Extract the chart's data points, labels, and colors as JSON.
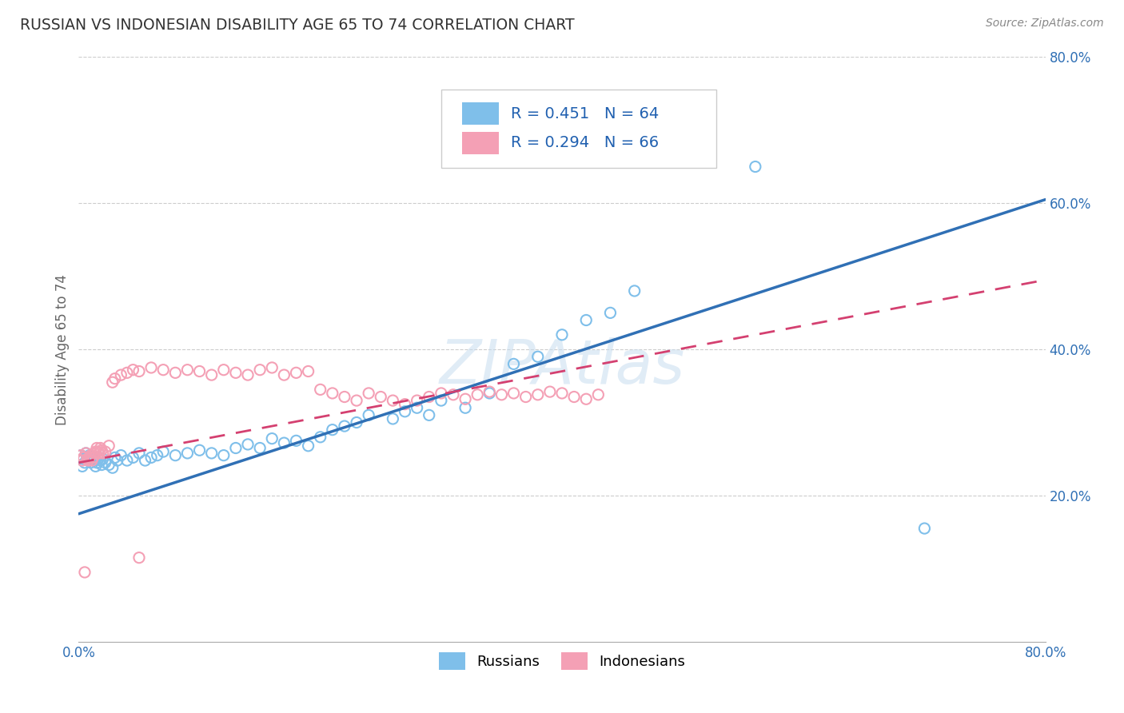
{
  "title": "RUSSIAN VS INDONESIAN DISABILITY AGE 65 TO 74 CORRELATION CHART",
  "source": "Source: ZipAtlas.com",
  "ylabel": "Disability Age 65 to 74",
  "xlim": [
    0.0,
    0.8
  ],
  "ylim": [
    0.0,
    0.8
  ],
  "watermark": "ZIPAtlas",
  "russian_color": "#7fbfea",
  "indonesian_color": "#f4a0b5",
  "russian_line_color": "#3070b5",
  "indonesian_line_color": "#d44070",
  "R_russian": "0.451",
  "N_russian": "64",
  "R_indonesian": "0.294",
  "N_indonesian": "66",
  "russians_x": [
    0.002,
    0.003,
    0.004,
    0.005,
    0.006,
    0.007,
    0.008,
    0.009,
    0.01,
    0.011,
    0.012,
    0.013,
    0.014,
    0.015,
    0.016,
    0.017,
    0.018,
    0.019,
    0.02,
    0.022,
    0.025,
    0.028,
    0.03,
    0.032,
    0.035,
    0.04,
    0.045,
    0.05,
    0.055,
    0.06,
    0.065,
    0.07,
    0.08,
    0.09,
    0.1,
    0.11,
    0.12,
    0.13,
    0.14,
    0.15,
    0.16,
    0.17,
    0.18,
    0.19,
    0.2,
    0.21,
    0.22,
    0.23,
    0.24,
    0.26,
    0.27,
    0.28,
    0.29,
    0.3,
    0.32,
    0.34,
    0.36,
    0.38,
    0.4,
    0.42,
    0.44,
    0.46,
    0.56,
    0.7
  ],
  "russians_y": [
    0.255,
    0.24,
    0.25,
    0.245,
    0.258,
    0.252,
    0.248,
    0.255,
    0.245,
    0.25,
    0.252,
    0.248,
    0.24,
    0.245,
    0.25,
    0.252,
    0.248,
    0.242,
    0.25,
    0.245,
    0.242,
    0.238,
    0.252,
    0.248,
    0.255,
    0.248,
    0.252,
    0.258,
    0.248,
    0.252,
    0.255,
    0.26,
    0.255,
    0.258,
    0.262,
    0.258,
    0.255,
    0.265,
    0.27,
    0.265,
    0.278,
    0.272,
    0.275,
    0.268,
    0.28,
    0.29,
    0.295,
    0.3,
    0.31,
    0.305,
    0.315,
    0.32,
    0.31,
    0.33,
    0.32,
    0.34,
    0.38,
    0.39,
    0.42,
    0.44,
    0.45,
    0.48,
    0.65,
    0.155
  ],
  "indonesians_x": [
    0.002,
    0.003,
    0.004,
    0.005,
    0.006,
    0.007,
    0.008,
    0.009,
    0.01,
    0.011,
    0.012,
    0.013,
    0.014,
    0.015,
    0.016,
    0.017,
    0.018,
    0.019,
    0.02,
    0.022,
    0.025,
    0.028,
    0.03,
    0.035,
    0.04,
    0.045,
    0.05,
    0.06,
    0.07,
    0.08,
    0.09,
    0.1,
    0.11,
    0.12,
    0.13,
    0.14,
    0.15,
    0.16,
    0.17,
    0.18,
    0.19,
    0.2,
    0.21,
    0.22,
    0.23,
    0.24,
    0.25,
    0.26,
    0.27,
    0.28,
    0.29,
    0.3,
    0.31,
    0.32,
    0.33,
    0.34,
    0.35,
    0.36,
    0.37,
    0.38,
    0.39,
    0.4,
    0.41,
    0.42,
    0.43,
    0.05
  ],
  "indonesians_y": [
    0.255,
    0.248,
    0.252,
    0.095,
    0.258,
    0.25,
    0.248,
    0.252,
    0.255,
    0.248,
    0.252,
    0.258,
    0.26,
    0.265,
    0.26,
    0.258,
    0.265,
    0.262,
    0.258,
    0.26,
    0.268,
    0.355,
    0.36,
    0.365,
    0.368,
    0.372,
    0.37,
    0.375,
    0.372,
    0.368,
    0.372,
    0.37,
    0.365,
    0.372,
    0.368,
    0.365,
    0.372,
    0.375,
    0.365,
    0.368,
    0.37,
    0.345,
    0.34,
    0.335,
    0.33,
    0.34,
    0.335,
    0.33,
    0.325,
    0.33,
    0.335,
    0.34,
    0.338,
    0.332,
    0.338,
    0.342,
    0.338,
    0.34,
    0.335,
    0.338,
    0.342,
    0.34,
    0.335,
    0.332,
    0.338,
    0.115
  ]
}
